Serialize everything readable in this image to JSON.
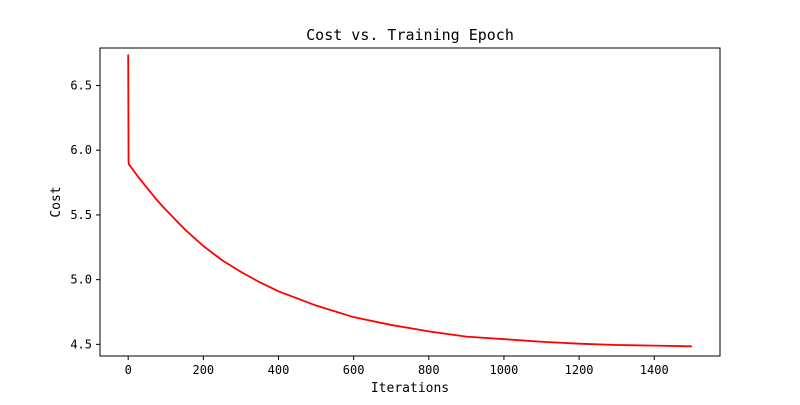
{
  "chart_data": {
    "type": "line",
    "title": "Cost vs. Training Epoch",
    "xlabel": "Iterations",
    "ylabel": "Cost",
    "xlim": [
      -75,
      1575
    ],
    "ylim": [
      4.41,
      6.79
    ],
    "xticks": [
      0,
      200,
      400,
      600,
      800,
      1000,
      1200,
      1400
    ],
    "xtick_labels": [
      "0",
      "200",
      "400",
      "600",
      "800",
      "1000",
      "1200",
      "1400"
    ],
    "yticks": [
      4.5,
      5.0,
      5.5,
      6.0,
      6.5
    ],
    "ytick_labels": [
      "4.5",
      "5.0",
      "5.5",
      "6.0",
      "6.5"
    ],
    "grid": false,
    "legend": "none",
    "series": [
      {
        "color": "#ff0000",
        "x": [
          0,
          1,
          2,
          5,
          10,
          25,
          50,
          75,
          100,
          150,
          200,
          250,
          300,
          350,
          400,
          500,
          600,
          700,
          800,
          900,
          1000,
          1100,
          1200,
          1300,
          1400,
          1500
        ],
        "y": [
          6.74,
          5.91,
          5.89,
          5.88,
          5.86,
          5.8,
          5.71,
          5.62,
          5.54,
          5.39,
          5.26,
          5.15,
          5.06,
          4.98,
          4.91,
          4.8,
          4.71,
          4.65,
          4.6,
          4.56,
          4.54,
          4.52,
          4.505,
          4.495,
          4.49,
          4.485
        ]
      }
    ]
  }
}
